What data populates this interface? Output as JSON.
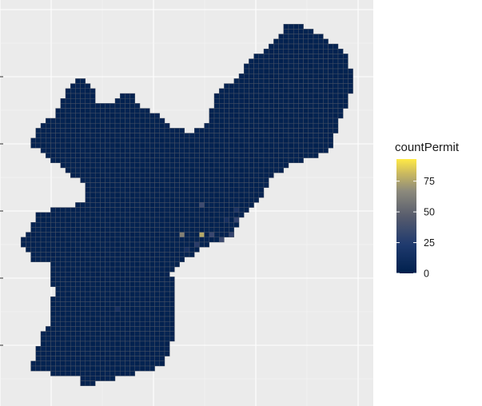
{
  "chart_data": {
    "type": "heatmap",
    "title": "",
    "xlabel": "",
    "ylabel": "",
    "value_name": "countPermit",
    "value_range": [
      0,
      93
    ],
    "colormap": "cividis",
    "colors": {
      "panel_background": "#ebebeb",
      "grid_major": "#ffffff",
      "cell_border": "#4d5566",
      "low": "#00204d",
      "mid": "#7c7b78",
      "high": "#ffea46"
    },
    "grid_major_lines": "on",
    "axis_tick_labels": "none",
    "legend": {
      "title": "countPermit",
      "placement": "right",
      "ticks": [
        0,
        25,
        50,
        75
      ]
    },
    "hot_cells": [
      {
        "col": 40,
        "row": 47,
        "value": 93
      },
      {
        "col": 37,
        "row": 43,
        "value": 72
      },
      {
        "col": 33,
        "row": 43,
        "value": 55
      },
      {
        "col": 42,
        "row": 44,
        "value": 40
      },
      {
        "col": 35,
        "row": 19,
        "value": 30
      },
      {
        "col": 53,
        "row": 34,
        "value": 34
      },
      {
        "col": 50,
        "row": 37,
        "value": 32
      },
      {
        "col": 41,
        "row": 44,
        "value": 26
      },
      {
        "col": 39,
        "row": 43,
        "value": 24
      },
      {
        "col": 43,
        "row": 43,
        "value": 22
      },
      {
        "col": 44,
        "row": 40,
        "value": 22
      },
      {
        "col": 35,
        "row": 48,
        "value": 28
      },
      {
        "col": 51,
        "row": 38,
        "value": 20
      },
      {
        "col": 45,
        "row": 46,
        "value": 18
      },
      {
        "col": 49,
        "row": 39,
        "value": 24
      },
      {
        "col": 48,
        "row": 37,
        "value": 20
      },
      {
        "col": 56,
        "row": 39,
        "value": 16
      },
      {
        "col": 62,
        "row": 34,
        "value": 26
      },
      {
        "col": 37,
        "row": 37,
        "value": 26
      },
      {
        "col": 40,
        "row": 45,
        "value": 30
      },
      {
        "col": 38,
        "row": 48,
        "value": 22
      },
      {
        "col": 36,
        "row": 45,
        "value": 18
      },
      {
        "col": 44,
        "row": 38,
        "value": 14
      },
      {
        "col": 46,
        "row": 41,
        "value": 16
      },
      {
        "col": 52,
        "row": 36,
        "value": 14
      },
      {
        "col": 47,
        "row": 44,
        "value": 12
      },
      {
        "col": 42,
        "row": 40,
        "value": 12
      },
      {
        "col": 39,
        "row": 50,
        "value": 14
      },
      {
        "col": 34,
        "row": 46,
        "value": 12
      },
      {
        "col": 20,
        "row": 58,
        "value": 12
      }
    ]
  }
}
